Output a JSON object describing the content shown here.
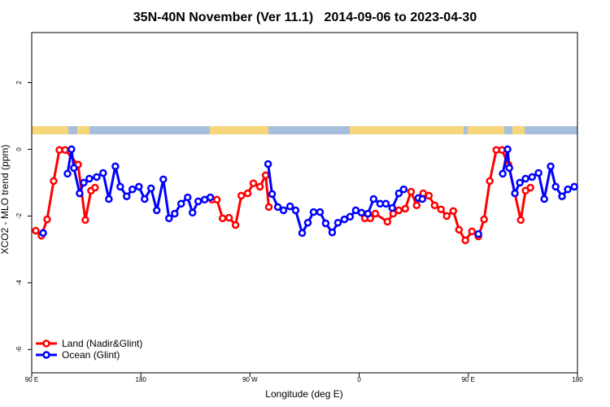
{
  "chart_data": {
    "type": "line",
    "title": "35N-40N November (Ver 11.1)   2014-09-06 to 2023-04-30",
    "xlabel": "Longitude (deg E)",
    "ylabel": "XCO2 - MLO trend (ppm)",
    "xlim": [
      90,
      540
    ],
    "xticks": [
      {
        "value": 90,
        "label": "90 E"
      },
      180,
      {
        "value": 270,
        "label": "90 W"
      },
      {
        "value": 360,
        "label": "0"
      },
      {
        "value": 450,
        "label": "90 E"
      },
      {
        "value": 540,
        "label": "180"
      }
    ],
    "ylim": [
      -6.7,
      3.5
    ],
    "yticks": [
      -6,
      -4,
      -2,
      0,
      2
    ],
    "legend": "lower left",
    "series": [
      {
        "name": "Land (Nadir&Glint)",
        "color": "#ff0000",
        "x": [
          93.3,
          98.0,
          102.7,
          108.1,
          112.8,
          117.5,
          128.2,
          134.2,
          138.9,
          142.2,
          190,
          238.7,
          242.7,
          247.4,
          252.7,
          258.1,
          262.8,
          268.1,
          272.8,
          278.2,
          282.9,
          285.5,
          320,
          364.6,
          369.2,
          373.3,
          383.3,
          388.0,
          392.7,
          398.0,
          402.8,
          407.4,
          412.8,
          417.5,
          422.2,
          427.5,
          432.2,
          437.6,
          442.3,
          447.6,
          453.0,
          458.3,
          463.0,
          467.7,
          473.1,
          477.7,
          483.1,
          493.2,
          497.2,
          501.2
        ],
        "values": [
          -2.44,
          -2.59,
          -2.1,
          -0.95,
          -0.02,
          -0.02,
          -0.46,
          -2.12,
          -1.24,
          -1.15,
          null,
          -1.51,
          -1.51,
          -2.07,
          -2.05,
          -2.27,
          -1.39,
          -1.32,
          -1.02,
          -1.12,
          -0.78,
          -1.73,
          null,
          -2.07,
          -2.07,
          -1.93,
          -2.17,
          -1.93,
          -1.83,
          -1.78,
          -1.27,
          -1.68,
          -1.32,
          -1.39,
          -1.68,
          -1.8,
          -2.0,
          -1.85,
          -2.41,
          -2.73,
          -2.46,
          -2.61,
          -2.1,
          -0.95,
          -0.02,
          -0.02,
          -0.46,
          -2.12,
          -1.24,
          -1.15
        ]
      },
      {
        "name": "Ocean (Glint)",
        "color": "#0000ff",
        "x": [
          99.4,
          104,
          119.5,
          122.8,
          124.8,
          129.5,
          132.9,
          137.5,
          143.6,
          148.9,
          153.6,
          159.0,
          163.0,
          168.3,
          173.0,
          178.4,
          183.1,
          188.4,
          193.1,
          198.5,
          203.2,
          207.9,
          213.2,
          218.6,
          222.6,
          227.3,
          232.6,
          237.3,
          260,
          284.9,
          288.2,
          292.9,
          297.6,
          303.0,
          307.6,
          313.0,
          317.7,
          322.4,
          327.7,
          332.4,
          337.8,
          342.5,
          347.8,
          352.5,
          357.2,
          361.9,
          367.2,
          371.9,
          377.3,
          382.0,
          387.3,
          392.7,
          396.7,
          400,
          408.8,
          412.1,
          450,
          458.3,
          480,
          478.4,
          482.4,
          483.8,
          488.4,
          492.5,
          497.2,
          502.6,
          507.9,
          512.6,
          517.9,
          522.0,
          527.3,
          532.0,
          537.4
        ],
        "values": [
          -2.51,
          null,
          -0.73,
          0,
          -0.56,
          -1.32,
          -1.0,
          -0.88,
          -0.83,
          -0.71,
          -1.49,
          -0.51,
          -1.12,
          -1.41,
          -1.2,
          -1.12,
          -1.49,
          -1.17,
          -1.83,
          -0.9,
          -2.07,
          -1.93,
          -1.63,
          -1.44,
          -1.9,
          -1.56,
          -1.51,
          -1.44,
          null,
          -0.44,
          -1.34,
          -1.73,
          -1.83,
          -1.71,
          -1.83,
          -2.51,
          -2.2,
          -1.88,
          -1.88,
          -2.22,
          -2.49,
          -2.2,
          -2.1,
          -2.02,
          -1.83,
          -1.9,
          -1.93,
          -1.49,
          -1.63,
          -1.63,
          -1.76,
          -1.32,
          -1.2,
          null,
          -1.46,
          -1.49,
          null,
          -2.54,
          null,
          -0.73,
          0,
          -0.56,
          -1.32,
          -1.0,
          -0.88,
          -0.83,
          -0.71,
          -1.49,
          -0.51,
          -1.12,
          -1.41,
          -1.2,
          -1.12
        ]
      }
    ]
  }
}
